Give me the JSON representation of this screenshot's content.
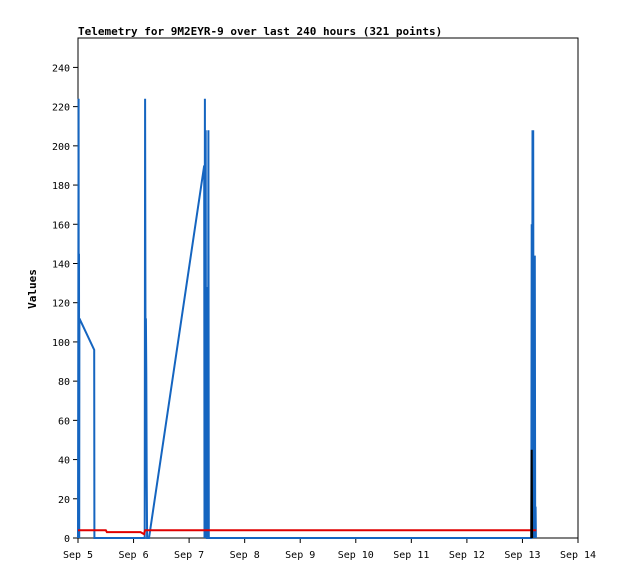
{
  "chart_data": {
    "type": "line",
    "title": "Telemetry for 9M2EYR-9 over last 240 hours (321 points)",
    "xlabel": "",
    "ylabel": "Values",
    "xlim": [
      "2023-09-05T00:00",
      "2023-09-14T00:00"
    ],
    "ylim": [
      0,
      255
    ],
    "y_ticks": [
      0,
      20,
      40,
      60,
      80,
      100,
      120,
      140,
      160,
      180,
      200,
      220,
      240
    ],
    "x_ticks": [
      {
        "t": "2023-09-05T00:00",
        "label": "Sep 5"
      },
      {
        "t": "2023-09-06T00:00",
        "label": "Sep 6"
      },
      {
        "t": "2023-09-07T00:00",
        "label": "Sep 7"
      },
      {
        "t": "2023-09-08T00:00",
        "label": "Sep 8"
      },
      {
        "t": "2023-09-09T00:00",
        "label": "Sep 9"
      },
      {
        "t": "2023-09-10T00:00",
        "label": "Sep 10"
      },
      {
        "t": "2023-09-11T00:00",
        "label": "Sep 11"
      },
      {
        "t": "2023-09-12T00:00",
        "label": "Sep 12"
      },
      {
        "t": "2023-09-13T00:00",
        "label": "Sep 13"
      },
      {
        "t": "2023-09-14T00:00",
        "label": "Sep 14"
      }
    ],
    "grid": false,
    "legend": "none",
    "series": [
      {
        "color": "#1565c0",
        "points": [
          [
            "2023-09-05T00:00",
            0
          ],
          [
            "2023-09-05T00:15",
            224
          ],
          [
            "2023-09-05T00:20",
            0
          ],
          [
            "2023-09-05T00:25",
            145
          ],
          [
            "2023-09-05T00:30",
            0
          ],
          [
            "2023-09-05T00:35",
            112
          ],
          [
            "2023-09-05T07:00",
            96
          ],
          [
            "2023-09-05T07:05",
            0
          ],
          [
            "2023-09-06T04:50",
            0
          ],
          [
            "2023-09-06T05:00",
            224
          ],
          [
            "2023-09-06T05:10",
            100
          ],
          [
            "2023-09-06T05:20",
            112
          ],
          [
            "2023-09-06T05:30",
            84
          ],
          [
            "2023-09-06T05:40",
            30
          ],
          [
            "2023-09-06T05:50",
            0
          ],
          [
            "2023-09-06T06:40",
            0
          ],
          [
            "2023-09-07T06:30",
            190
          ],
          [
            "2023-09-07T06:40",
            0
          ],
          [
            "2023-09-07T06:50",
            224
          ],
          [
            "2023-09-07T07:00",
            0
          ],
          [
            "2023-09-07T07:10",
            208
          ],
          [
            "2023-09-07T07:20",
            0
          ],
          [
            "2023-09-07T07:30",
            128
          ],
          [
            "2023-09-07T07:40",
            0
          ],
          [
            "2023-09-07T08:10",
            0
          ],
          [
            "2023-09-07T08:20",
            208
          ],
          [
            "2023-09-07T08:30",
            0
          ],
          [
            "2023-09-13T03:50",
            0
          ],
          [
            "2023-09-13T04:00",
            160
          ],
          [
            "2023-09-13T04:10",
            0
          ],
          [
            "2023-09-13T04:20",
            208
          ],
          [
            "2023-09-13T04:30",
            0
          ],
          [
            "2023-09-13T04:40",
            208
          ],
          [
            "2023-09-13T04:50",
            0
          ],
          [
            "2023-09-13T05:00",
            128
          ],
          [
            "2023-09-13T05:10",
            0
          ],
          [
            "2023-09-13T05:20",
            144
          ],
          [
            "2023-09-13T05:30",
            0
          ],
          [
            "2023-09-13T05:40",
            16
          ],
          [
            "2023-09-13T05:50",
            0
          ]
        ]
      },
      {
        "color": "#e00000",
        "points": [
          [
            "2023-09-05T00:00",
            4
          ],
          [
            "2023-09-05T12:00",
            4
          ],
          [
            "2023-09-05T12:30",
            3
          ],
          [
            "2023-09-06T03:00",
            3
          ],
          [
            "2023-09-06T04:30",
            2
          ],
          [
            "2023-09-06T05:00",
            4
          ],
          [
            "2023-09-13T06:00",
            4
          ]
        ]
      },
      {
        "color": "#000000",
        "points": [
          [
            "2023-09-13T03:50",
            0
          ],
          [
            "2023-09-13T04:00",
            45
          ],
          [
            "2023-09-13T04:10",
            0
          ]
        ]
      }
    ]
  }
}
